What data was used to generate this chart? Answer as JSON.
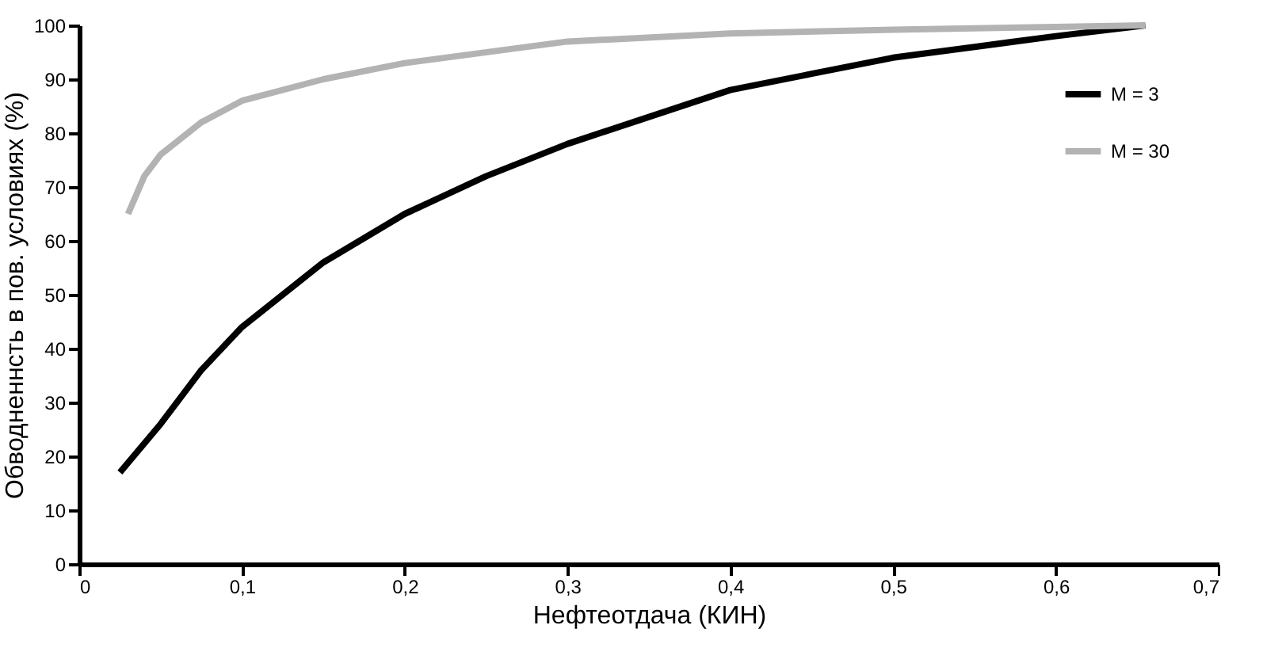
{
  "chart_data": {
    "type": "line",
    "xlabel": "Нефтеотдача (КИН)",
    "ylabel": "Обводненнсть в пов. условиях (%)",
    "xlim": [
      0,
      0.7
    ],
    "xticks": [
      0,
      {
        "value": 0.1,
        "label": "0,1"
      },
      {
        "value": 0.2,
        "label": "0,2"
      },
      {
        "value": 0.3,
        "label": "0,3"
      },
      {
        "value": 0.4,
        "label": "0,4"
      },
      {
        "value": 0.5,
        "label": "0,5"
      },
      {
        "value": 0.6,
        "label": "0,6"
      },
      {
        "value": 0.7,
        "label": "0,7"
      }
    ],
    "ylim": [
      0,
      100
    ],
    "yticks": [
      0,
      10,
      20,
      30,
      40,
      50,
      60,
      70,
      80,
      90,
      100
    ],
    "grid": false,
    "legend": "top right",
    "marker": "none",
    "line_style": "solid",
    "series": [
      {
        "name": "M = 3",
        "color": "#000000",
        "x": [
          0.025,
          0.05,
          0.075,
          0.1,
          0.15,
          0.2,
          0.25,
          0.3,
          0.35,
          0.4,
          0.45,
          0.5,
          0.55,
          0.6,
          0.655
        ],
        "values": [
          17,
          26,
          36,
          44,
          56,
          65,
          72,
          78,
          83,
          88,
          91,
          94,
          96,
          98,
          100
        ]
      },
      {
        "name": "M = 30",
        "color": "#b3b3b3",
        "x": [
          0.03,
          0.04,
          0.05,
          0.075,
          0.1,
          0.15,
          0.2,
          0.3,
          0.4,
          0.5,
          0.6,
          0.655
        ],
        "values": [
          65,
          72,
          76,
          82,
          86,
          90,
          93,
          97,
          98.5,
          99.2,
          99.7,
          100
        ]
      }
    ]
  }
}
